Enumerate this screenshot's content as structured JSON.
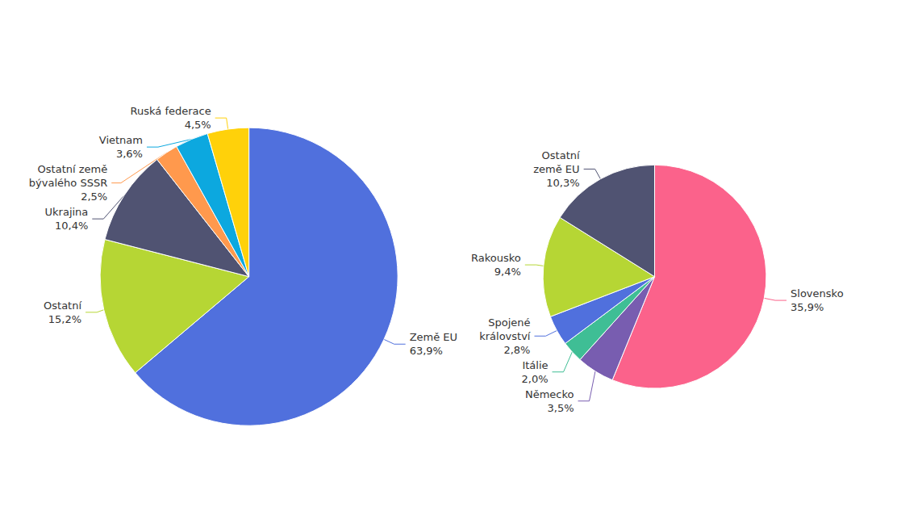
{
  "chart_data": [
    {
      "type": "pie",
      "categories": [
        "Země EU",
        "Ostatní",
        "Ukrajina",
        "Ostatní země\nbývalého SSSR",
        "Vietnam",
        "Ruská federace"
      ],
      "values": [
        63.9,
        15.2,
        10.4,
        2.5,
        3.6,
        4.5
      ],
      "value_labels": [
        "63,9%",
        "15,2%",
        "10,4%",
        "2,5%",
        "3,6%",
        "4,5%"
      ],
      "data_labels": true
    },
    {
      "type": "pie",
      "categories": [
        "Slovensko",
        "Německo",
        "Itálie",
        "Spojené\nkrálovství",
        "Rakousko",
        "Ostatní\nzemě EU"
      ],
      "values": [
        35.9,
        3.5,
        2.0,
        2.8,
        9.4,
        10.3
      ],
      "value_labels": [
        "35,9%",
        "3,5%",
        "2,0%",
        "2,8%",
        "9,4%",
        "10,3%"
      ],
      "data_labels": true
    }
  ]
}
